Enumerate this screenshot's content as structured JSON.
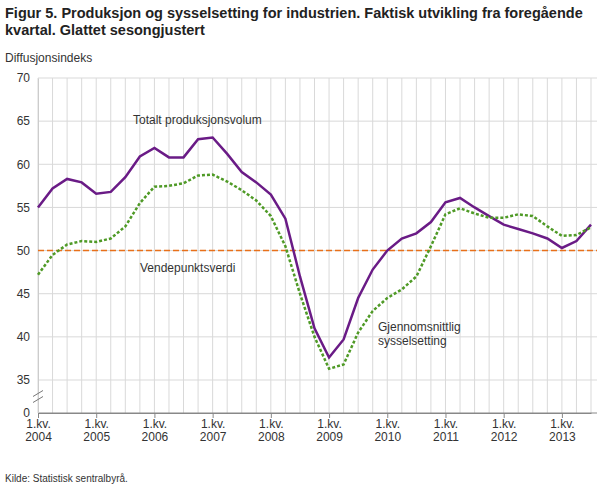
{
  "chart_data": {
    "type": "line",
    "title": "Figur 5. Produksjon og sysselsetting for industrien. Faktisk utvikling fra foregående kvartal. Glattet sesongjustert",
    "y_label": "Diffusjonsindeks",
    "source": "Kilde: Statistisk sentralbyrå.",
    "categories": [
      "1.kv. 2004",
      null,
      null,
      null,
      "1.kv. 2005",
      null,
      null,
      null,
      "1.kv. 2006",
      null,
      null,
      null,
      "1.kv. 2007",
      null,
      null,
      null,
      "1.kv. 2008",
      null,
      null,
      null,
      "1.kv. 2009",
      null,
      null,
      null,
      "1.kv. 2010",
      null,
      null,
      null,
      "1.kv. 2011",
      null,
      null,
      null,
      "1.kv. 2012",
      null,
      null,
      null,
      "1.kv. 2013",
      null,
      null
    ],
    "series": [
      {
        "name": "Totalt produksjonsvolum",
        "color": "#6a1b86",
        "line_style": "solid",
        "values": [
          55.0,
          57.2,
          58.3,
          57.9,
          56.6,
          56.8,
          58.5,
          60.9,
          61.9,
          60.8,
          60.8,
          62.9,
          63.1,
          61.2,
          59.1,
          57.9,
          56.5,
          53.7,
          47.0,
          41.0,
          37.6,
          39.7,
          44.5,
          47.8,
          50.0,
          51.4,
          52.0,
          53.3,
          55.6,
          56.1,
          55.0,
          54.0,
          53.0,
          52.5,
          52.0,
          51.4,
          50.3,
          51.1,
          53.0
        ]
      },
      {
        "name": "Gjennomsnittlig sysselsetting",
        "color": "#4f9a26",
        "line_style": "dotted",
        "values": [
          47.2,
          49.5,
          50.7,
          51.1,
          51.0,
          51.4,
          52.8,
          55.5,
          57.4,
          57.5,
          57.8,
          58.7,
          58.8,
          58.0,
          57.0,
          55.8,
          54.0,
          50.5,
          45.0,
          40.0,
          36.3,
          36.8,
          40.5,
          43.0,
          44.5,
          45.5,
          47.0,
          50.5,
          54.2,
          54.9,
          54.3,
          53.8,
          53.8,
          54.2,
          54.0,
          52.8,
          51.7,
          51.8,
          52.7
        ]
      }
    ],
    "reference_line": {
      "name": "Vendepunktsverdi",
      "value": 50,
      "color": "#e8701a",
      "line_style": "dashed"
    },
    "ylim": [
      0,
      70
    ],
    "yticks": [
      0,
      35,
      40,
      45,
      50,
      55,
      60,
      65,
      70
    ],
    "grid": true
  }
}
